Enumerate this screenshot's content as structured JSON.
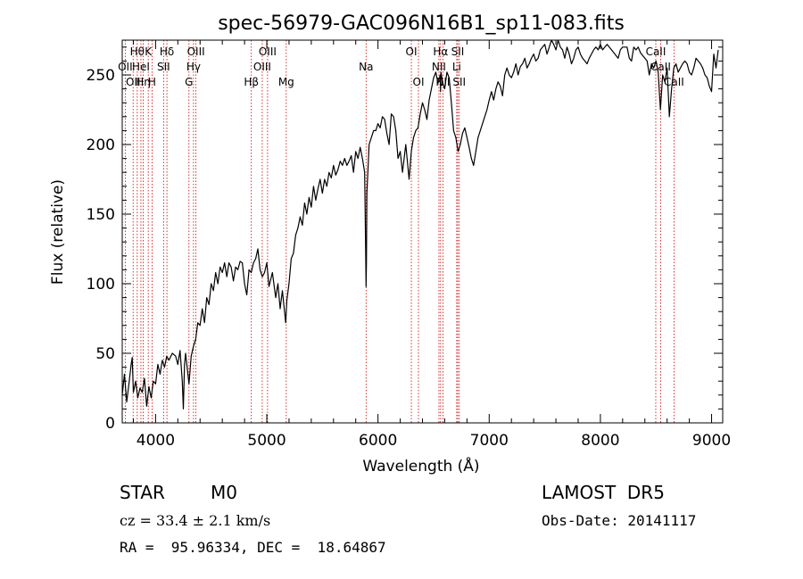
{
  "chart_data": {
    "type": "line",
    "title": "spec-56979-GAC096N16B1_sp11-083.fits",
    "xlabel": "Wavelength (Å)",
    "ylabel": "Flux (relative)",
    "xlim": [
      3700,
      9100
    ],
    "ylim": [
      0,
      275
    ],
    "x_ticks": [
      4000,
      5000,
      6000,
      7000,
      8000,
      9000
    ],
    "y_ticks": [
      0,
      50,
      100,
      150,
      200,
      250
    ],
    "grid": false,
    "line_color": "#000000",
    "marker_color": "#cc0000",
    "series": [
      {
        "x": [
          3700,
          3720,
          3740,
          3760,
          3780,
          3790,
          3800,
          3820,
          3840,
          3860,
          3880,
          3900,
          3920,
          3940,
          3960,
          3980,
          4000,
          4020,
          4040,
          4060,
          4080,
          4100,
          4120,
          4150,
          4180,
          4200,
          4220,
          4240,
          4250,
          4260,
          4270,
          4300,
          4320,
          4340,
          4360,
          4380,
          4400,
          4420,
          4440,
          4460,
          4480,
          4500,
          4520,
          4540,
          4560,
          4580,
          4600,
          4620,
          4640,
          4660,
          4680,
          4700,
          4720,
          4740,
          4760,
          4780,
          4800,
          4820,
          4840,
          4860,
          4880,
          4900,
          4920,
          4940,
          4960,
          4980,
          5000,
          5020,
          5050,
          5080,
          5100,
          5120,
          5140,
          5170,
          5180,
          5200,
          5220,
          5240,
          5260,
          5280,
          5300,
          5320,
          5340,
          5360,
          5380,
          5400,
          5420,
          5440,
          5460,
          5480,
          5500,
          5520,
          5540,
          5560,
          5580,
          5600,
          5620,
          5640,
          5660,
          5680,
          5700,
          5720,
          5740,
          5760,
          5780,
          5800,
          5820,
          5840,
          5860,
          5880,
          5890,
          5893,
          5896,
          5900,
          5920,
          5940,
          5960,
          5980,
          6000,
          6020,
          6040,
          6060,
          6080,
          6100,
          6120,
          6140,
          6160,
          6180,
          6200,
          6220,
          6250,
          6280,
          6300,
          6320,
          6340,
          6360,
          6380,
          6400,
          6420,
          6440,
          6460,
          6480,
          6500,
          6520,
          6540,
          6560,
          6563,
          6566,
          6580,
          6600,
          6620,
          6640,
          6660,
          6680,
          6700,
          6720,
          6740,
          6760,
          6780,
          6800,
          6820,
          6840,
          6860,
          6880,
          6900,
          6920,
          6940,
          6960,
          6980,
          7000,
          7020,
          7040,
          7060,
          7080,
          7100,
          7120,
          7140,
          7160,
          7180,
          7200,
          7220,
          7240,
          7260,
          7280,
          7300,
          7320,
          7340,
          7360,
          7380,
          7400,
          7420,
          7440,
          7460,
          7480,
          7500,
          7520,
          7540,
          7560,
          7580,
          7600,
          7620,
          7640,
          7660,
          7680,
          7700,
          7720,
          7740,
          7760,
          7780,
          7800,
          7820,
          7840,
          7860,
          7880,
          7900,
          7920,
          7940,
          7960,
          7980,
          8000,
          8020,
          8040,
          8060,
          8080,
          8100,
          8120,
          8140,
          8160,
          8180,
          8200,
          8220,
          8240,
          8260,
          8280,
          8300,
          8320,
          8340,
          8360,
          8380,
          8400,
          8420,
          8440,
          8460,
          8480,
          8500,
          8520,
          8540,
          8560,
          8580,
          8600,
          8620,
          8640,
          8660,
          8680,
          8700,
          8720,
          8740,
          8760,
          8780,
          8800,
          8820,
          8840,
          8860,
          8880,
          8900,
          8920,
          8940,
          8960,
          8980,
          9000,
          9020,
          9040,
          9060
        ],
        "y": [
          20,
          35,
          15,
          28,
          42,
          47,
          22,
          30,
          18,
          25,
          22,
          32,
          12,
          26,
          18,
          30,
          28,
          42,
          35,
          45,
          40,
          48,
          45,
          50,
          48,
          42,
          52,
          30,
          10,
          42,
          50,
          28,
          48,
          55,
          60,
          72,
          70,
          82,
          72,
          90,
          85,
          100,
          95,
          108,
          100,
          112,
          108,
          115,
          105,
          115,
          112,
          102,
          112,
          110,
          116,
          115,
          100,
          92,
          110,
          108,
          115,
          118,
          125,
          110,
          105,
          108,
          115,
          98,
          108,
          90,
          100,
          82,
          95,
          72,
          88,
          100,
          118,
          122,
          135,
          140,
          148,
          142,
          158,
          150,
          162,
          155,
          170,
          160,
          168,
          175,
          165,
          175,
          170,
          180,
          176,
          185,
          178,
          182,
          188,
          185,
          190,
          185,
          188,
          192,
          180,
          195,
          190,
          198,
          190,
          180,
          120,
          98,
          115,
          165,
          200,
          205,
          210,
          210,
          215,
          212,
          220,
          218,
          208,
          200,
          222,
          220,
          210,
          190,
          195,
          180,
          200,
          175,
          195,
          205,
          210,
          212,
          222,
          230,
          225,
          218,
          232,
          240,
          248,
          252,
          244,
          250,
          238,
          252,
          245,
          240,
          252,
          248,
          230,
          210,
          205,
          195,
          200,
          208,
          212,
          205,
          198,
          190,
          185,
          195,
          205,
          210,
          215,
          220,
          225,
          232,
          238,
          232,
          240,
          245,
          242,
          235,
          250,
          255,
          250,
          248,
          252,
          258,
          250,
          256,
          258,
          262,
          255,
          258,
          262,
          265,
          260,
          262,
          268,
          270,
          272,
          265,
          270,
          275,
          272,
          268,
          275,
          270,
          268,
          262,
          270,
          265,
          258,
          262,
          268,
          270,
          265,
          262,
          260,
          258,
          262,
          265,
          268,
          270,
          268,
          272,
          268,
          270,
          272,
          270,
          268,
          266,
          264,
          262,
          268,
          270,
          270,
          270,
          262,
          260,
          270,
          268,
          270,
          266,
          264,
          262,
          260,
          250,
          258,
          255,
          260,
          252,
          225,
          250,
          245,
          255,
          220,
          240,
          255,
          258,
          252,
          255,
          258,
          260,
          258,
          252,
          250,
          255,
          262,
          260,
          258,
          255,
          250,
          248,
          242,
          238,
          265,
          255,
          268
        ]
      }
    ],
    "line_ids": [
      {
        "wl": 3727,
        "label": "OII",
        "row": 1
      },
      {
        "wl": 3798,
        "label": "OII",
        "row": 2
      },
      {
        "wl": 3835,
        "label": "Hθ",
        "row": 0
      },
      {
        "wl": 3868,
        "label": "HeI",
        "row": 1
      },
      {
        "wl": 3889,
        "label": "Hη",
        "row": 2
      },
      {
        "wl": 3934,
        "label": "K",
        "row": 0
      },
      {
        "wl": 3968,
        "label": "H",
        "row": 2
      },
      {
        "wl": 4072,
        "label": "SII",
        "row": 1
      },
      {
        "wl": 4102,
        "label": "Hδ",
        "row": 0
      },
      {
        "wl": 4300,
        "label": "G",
        "row": 2
      },
      {
        "wl": 4341,
        "label": "Hγ",
        "row": 1
      },
      {
        "wl": 4363,
        "label": "OIII",
        "row": 0
      },
      {
        "wl": 4861,
        "label": "Hβ",
        "row": 2
      },
      {
        "wl": 4959,
        "label": "OIII",
        "row": 1
      },
      {
        "wl": 5007,
        "label": "OIII",
        "row": 0
      },
      {
        "wl": 5175,
        "label": "Mg",
        "row": 2
      },
      {
        "wl": 5893,
        "label": "Na",
        "row": 1
      },
      {
        "wl": 6300,
        "label": "OI",
        "row": 0
      },
      {
        "wl": 6364,
        "label": "OI",
        "row": 2
      },
      {
        "wl": 6548,
        "label": "NII",
        "row": 1
      },
      {
        "wl": 6563,
        "label": "Hα",
        "row": 0
      },
      {
        "wl": 6584,
        "label": "NII",
        "row": 2
      },
      {
        "wl": 6708,
        "label": "Li",
        "row": 1
      },
      {
        "wl": 6717,
        "label": "SII",
        "row": 0
      },
      {
        "wl": 6731,
        "label": "SII",
        "row": 2
      },
      {
        "wl": 8498,
        "label": "CaII",
        "row": 0
      },
      {
        "wl": 8542,
        "label": "CaII",
        "row": 1
      },
      {
        "wl": 8662,
        "label": "CaII",
        "row": 2
      }
    ]
  },
  "info": {
    "class": "STAR",
    "subclass": "M0",
    "survey": "LAMOST  DR5",
    "cz": "cz = 33.4 ± 2.1 km/s",
    "obs_date": "Obs-Date: 20141117",
    "radec": "RA =  95.96334, DEC =  18.64867"
  }
}
